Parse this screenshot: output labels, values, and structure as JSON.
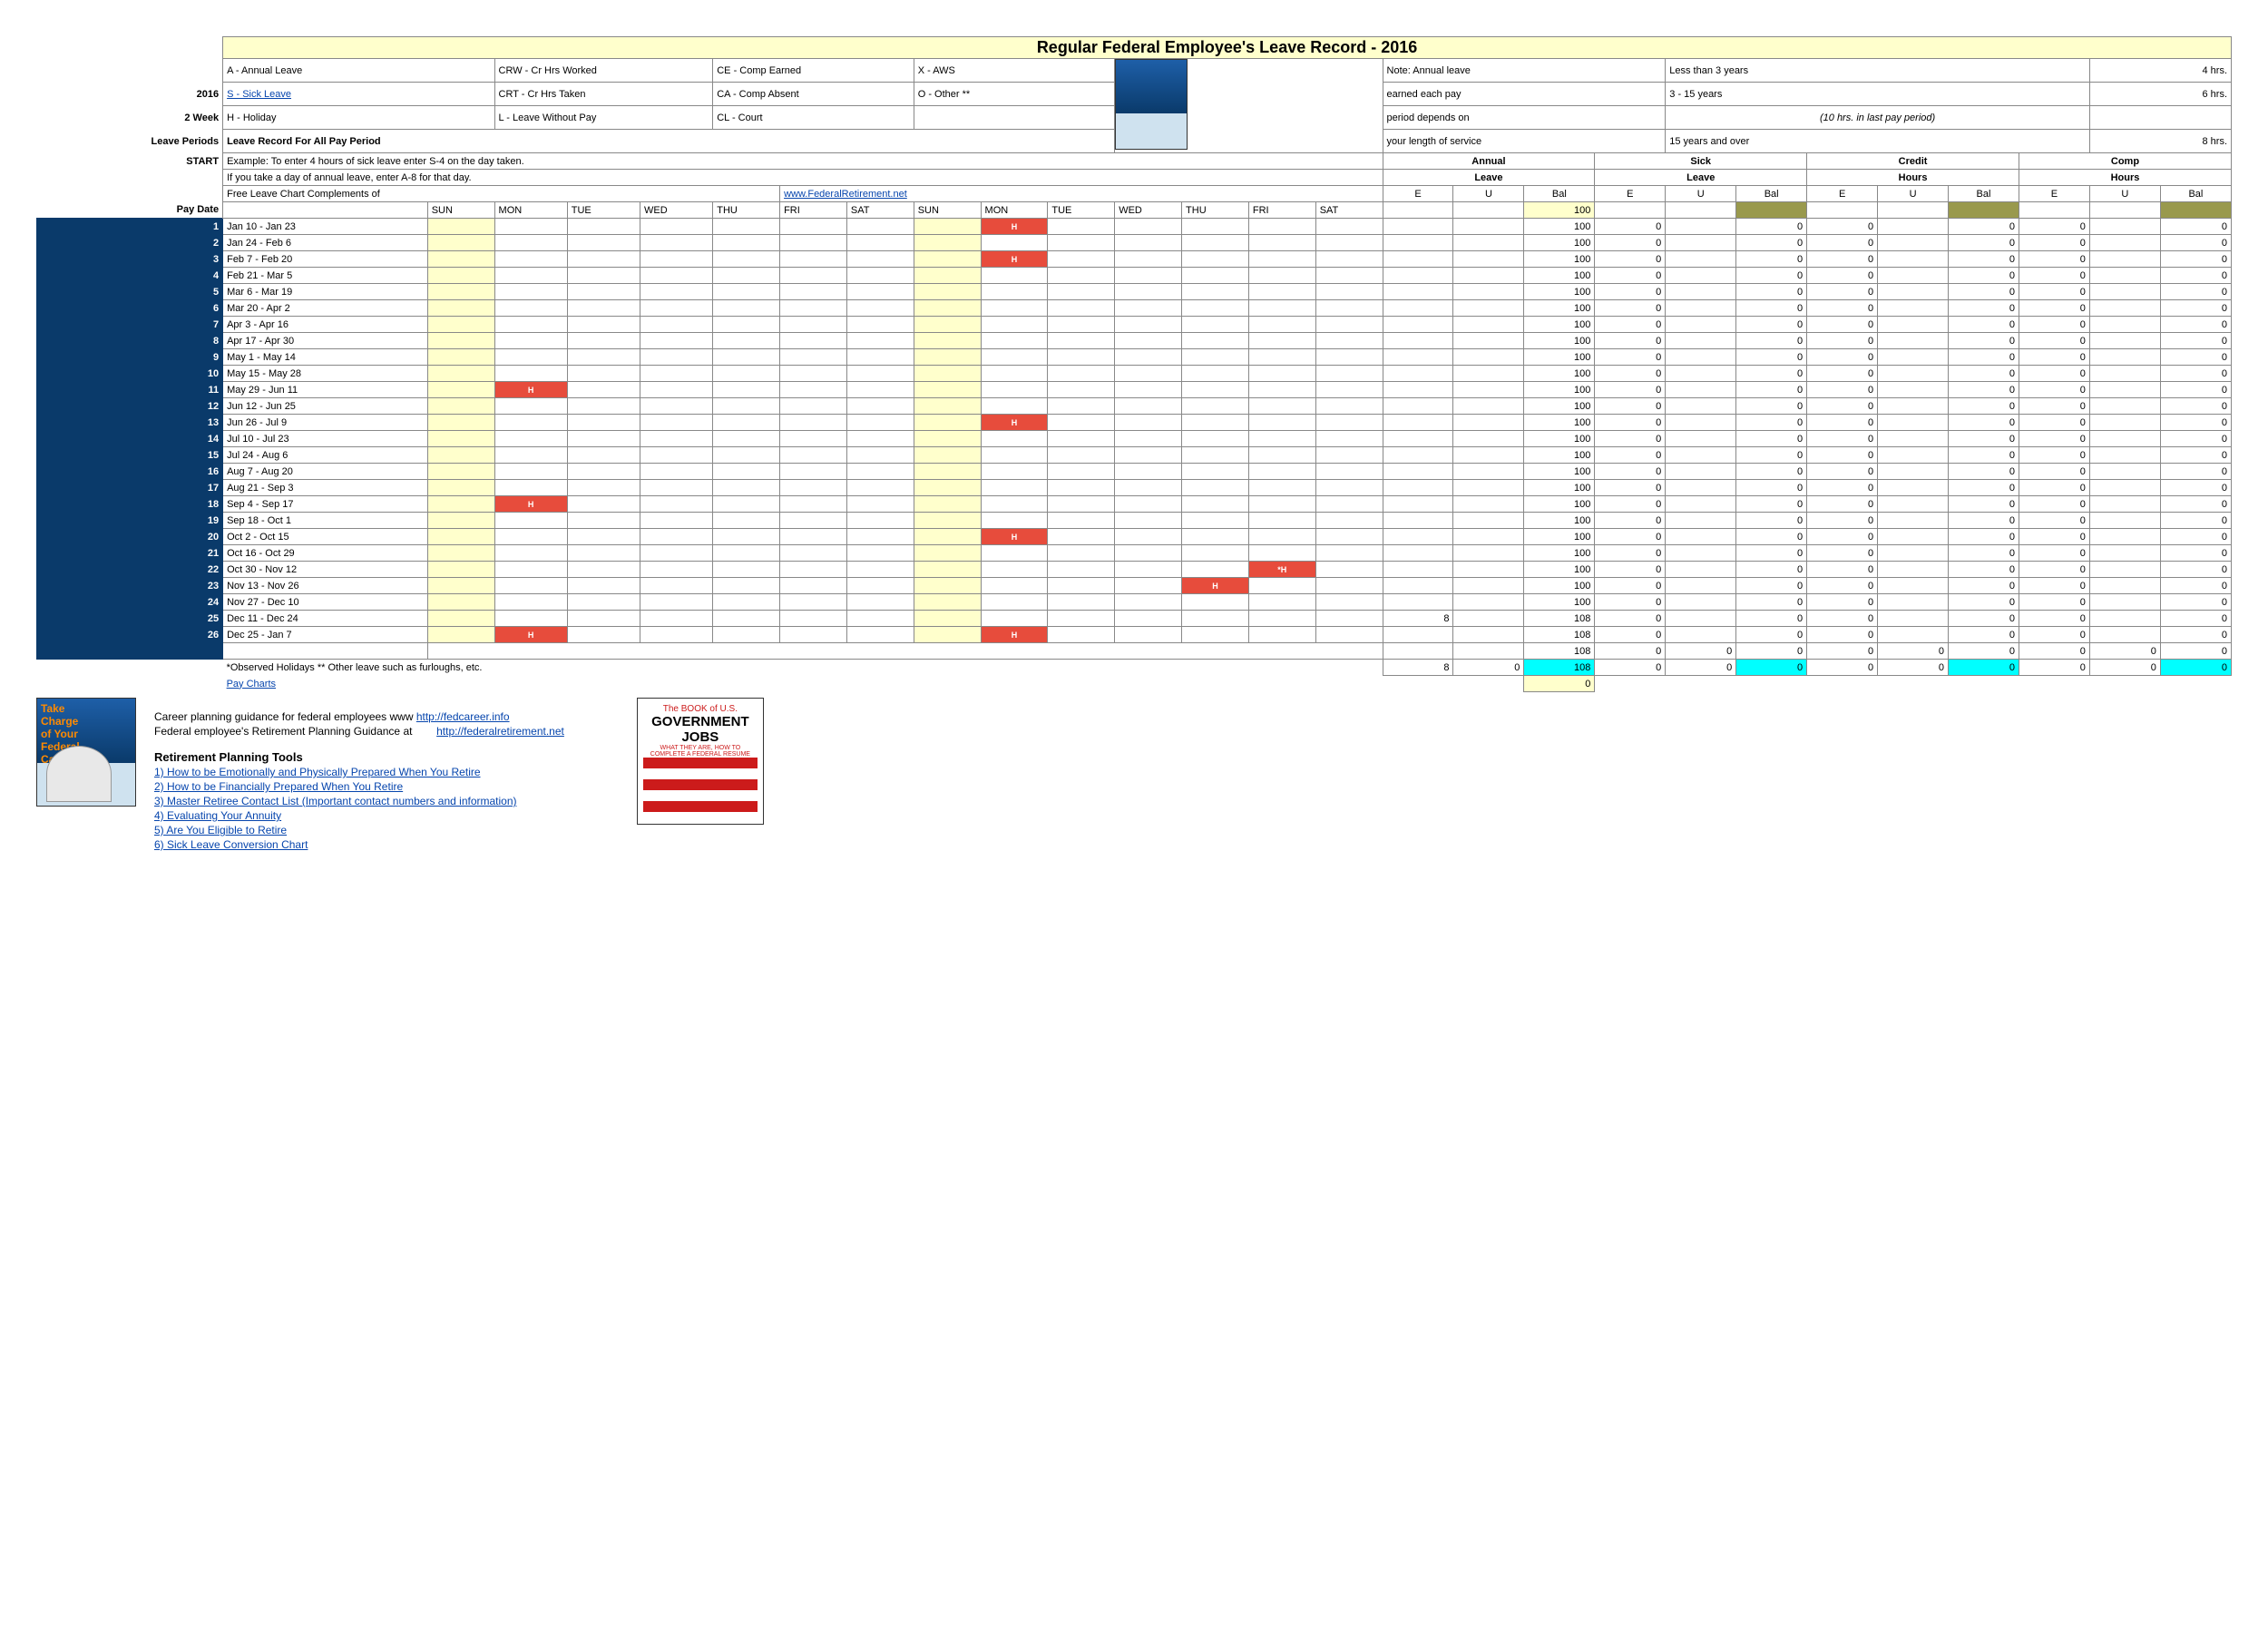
{
  "title": "Regular Federal Employee's Leave Record - 2016",
  "legend": {
    "a": "A - Annual Leave",
    "crw": "CRW - Cr Hrs Worked",
    "ce": "CE - Comp Earned",
    "x": "X - AWS",
    "s": "S  - Sick Leave",
    "crt": "CRT - Cr Hrs Taken",
    "ca": "CA - Comp Absent",
    "o": "O - Other **",
    "h": "H - Holiday",
    "l": "L    - Leave Without Pay",
    "cl": "CL  - Court"
  },
  "note": {
    "l1a": "Note:  Annual leave",
    "l1b": "Less than 3 years",
    "l1c": "4 hrs.",
    "l2a": "earned each pay",
    "l2b": "3 - 15 years",
    "l2c": "6 hrs.",
    "l3a": "period depends on",
    "l3b": "(10 hrs. in last pay period)",
    "l4a": "your length of service",
    "l4b": "15 years and over",
    "l4c": "8 hrs."
  },
  "left": {
    "year": "2016",
    "weeks": "2 Week",
    "periods": "Leave Periods",
    "start": "START",
    "paydate": "Pay Date"
  },
  "boldline": "Leave Record For All Pay Period",
  "ex1": "Example: To enter 4 hours of sick leave enter S-4 on the day taken.",
  "ex2": "If you take a day of annual leave, enter A-8 for that day.",
  "comp": "Free Leave Chart Complements of",
  "complink": "www.FederalRetirement.net",
  "cats": {
    "annual": "Annual",
    "leave": "Leave",
    "sick": "Sick",
    "credit": "Credit",
    "hours": "Hours",
    "comp": "Comp"
  },
  "sub": {
    "e": "E",
    "u": "U",
    "bal": "Bal"
  },
  "days": [
    "SUN",
    "MON",
    "TUE",
    "WED",
    "THU",
    "FRI",
    "SAT",
    "SUN",
    "MON",
    "TUE",
    "WED",
    "THU",
    "FRI",
    "SAT"
  ],
  "rows": [
    {
      "n": 1,
      "d": "Jan 10 - Jan 23",
      "h": [
        8
      ]
    },
    {
      "n": 2,
      "d": "Jan 24 - Feb 6",
      "h": []
    },
    {
      "n": 3,
      "d": "Feb 7 - Feb 20",
      "h": [
        8
      ]
    },
    {
      "n": 4,
      "d": "Feb 21 - Mar 5",
      "h": []
    },
    {
      "n": 5,
      "d": "Mar 6 - Mar 19",
      "h": []
    },
    {
      "n": 6,
      "d": "Mar 20 - Apr 2",
      "h": []
    },
    {
      "n": 7,
      "d": "Apr 3 - Apr  16",
      "h": []
    },
    {
      "n": 8,
      "d": "Apr  17 - Apr 30",
      "h": []
    },
    {
      "n": 9,
      "d": "May 1 - May 14",
      "h": []
    },
    {
      "n": 10,
      "d": "May 15 - May 28",
      "h": []
    },
    {
      "n": 11,
      "d": "May 29 - Jun 11",
      "h": [
        1
      ]
    },
    {
      "n": 12,
      "d": "Jun 12 - Jun 25",
      "h": []
    },
    {
      "n": 13,
      "d": "Jun 26 - Jul 9",
      "h": [
        8
      ]
    },
    {
      "n": 14,
      "d": "Jul 10 - Jul 23",
      "h": []
    },
    {
      "n": 15,
      "d": "Jul 24 - Aug 6",
      "h": []
    },
    {
      "n": 16,
      "d": "Aug 7 - Aug 20",
      "h": []
    },
    {
      "n": 17,
      "d": "Aug 21 - Sep 3",
      "h": []
    },
    {
      "n": 18,
      "d": "Sep 4 - Sep  17",
      "h": [
        1
      ]
    },
    {
      "n": 19,
      "d": "Sep  18 - Oct 1",
      "h": []
    },
    {
      "n": 20,
      "d": "Oct 2 - Oct  15",
      "h": [
        8
      ]
    },
    {
      "n": 21,
      "d": "Oct  16 - Oct 29",
      "h": []
    },
    {
      "n": 22,
      "d": "Oct 30 - Nov  12",
      "h": [
        12
      ],
      "star": true
    },
    {
      "n": 23,
      "d": "Nov  13 - Nov 26",
      "h": [
        11
      ]
    },
    {
      "n": 24,
      "d": "Nov 27 - Dec  10",
      "h": []
    },
    {
      "n": 25,
      "d": "Dec  11 - Dec 24",
      "h": [],
      "e": 8,
      "bal": 108
    },
    {
      "n": 26,
      "d": "Dec 25 - Jan 7",
      "h": [
        1,
        8
      ],
      "bal": 108
    }
  ],
  "defaults": {
    "bal": 100,
    "zeros": "0"
  },
  "lastrow_bal": 108,
  "totals": {
    "e": 8,
    "u": 0,
    "bal": 108
  },
  "zero_ylw": 0,
  "footnote": "*Observed Holidays  ** Other leave such as furloughs, etc.",
  "paycharts": "Pay Charts",
  "footer": {
    "career1a": "Career planning guidance for federal employees www ",
    "career1b": "http://fedcareer.info",
    "career2a": "Federal employee's Retirement Planning Guidance at",
    "career2b": "http://federalretirement.net",
    "rpt": "Retirement Planning Tools",
    "links": [
      "1)   How to be Emotionally and Physically Prepared When You Retire",
      "2)   How to be Financially Prepared When You Retire",
      "3)   Master Retiree Contact List (Important contact numbers and information)",
      "4)   Evaluating Your Annuity",
      "5)   Are You Eligible to Retire",
      "6)   Sick Leave Conversion Chart"
    ]
  },
  "govbook": {
    "t1": "The BOOK of U.S.",
    "t2": "GOVERNMENT",
    "t3": "JOBS"
  },
  "sideimg_text": "Take\nCharge\nof Your\nFederal\nCareer",
  "colors": {
    "title_bg": "#ffffcc",
    "yellow": "#ffffcc",
    "olive": "#99994d",
    "cyan": "#00ffff",
    "red": "#e74c3c",
    "navy": "#0a3a6a",
    "border": "#888888",
    "link": "#0645ad"
  }
}
